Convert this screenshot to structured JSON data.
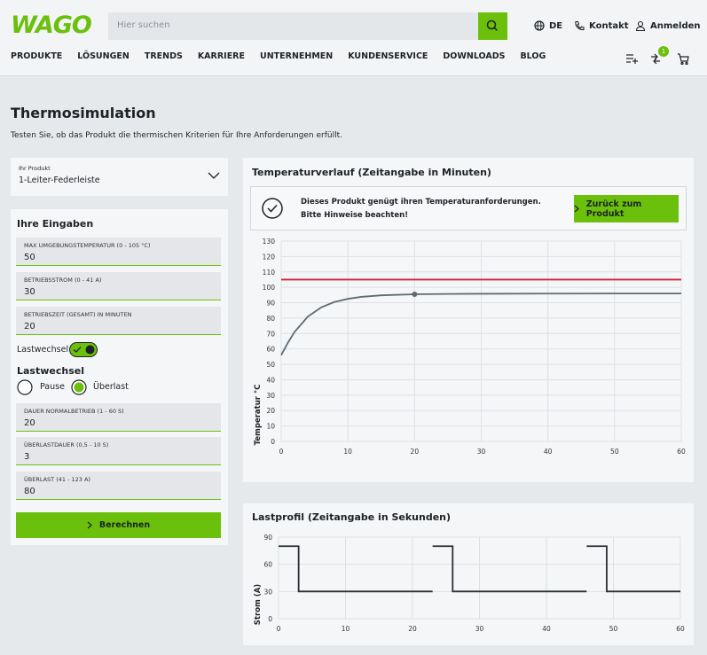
{
  "header": {
    "logo": "WAGO",
    "search_placeholder": "Hier suchen",
    "language": "DE",
    "contact": "Kontakt",
    "login": "Anmelden",
    "nav": [
      "PRODUKTE",
      "LÖSUNGEN",
      "TRENDS",
      "KARRIERE",
      "UNTERNEHMEN",
      "KUNDENSERVICE",
      "DOWNLOADS",
      "BLOG"
    ],
    "compare_badge": "1"
  },
  "page": {
    "title": "Thermosimulation",
    "subtitle": "Testen Sie, ob das Produkt die thermischen Kriterien für Ihre Anforderungen erfüllt."
  },
  "product": {
    "label": "Ihr Produkt",
    "value": "1-Leiter-Federleiste"
  },
  "inputs": {
    "title": "Ihre Eingaben",
    "fields": [
      {
        "label": "MAX UMGEBUNGSTEMPERATUR (0 - 105 °C)",
        "value": "50"
      },
      {
        "label": "BETRIEBSSTROM (0 - 41 A)",
        "value": "30"
      },
      {
        "label": "BETRIEBSZEIT (GESAMT) IN MINUTEN",
        "value": "20"
      }
    ],
    "toggle_label": "Lastwechsel",
    "mode_title": "Lastwechsel",
    "options": [
      "Pause",
      "Überlast"
    ],
    "load_fields": [
      {
        "label": "DAUER NORMALBETRIEB (1 - 60 S)",
        "value": "20"
      },
      {
        "label": "ÜBERLASTDAUER (0,5 - 10 S)",
        "value": "3"
      },
      {
        "label": "ÜBERLAST (41 - 123 A)",
        "value": "80"
      }
    ],
    "button": "Berechnen"
  },
  "result": {
    "message": "Dieses Produkt genügt ihren Temperaturanforderungen. Bitte Hinweise beachten!",
    "button": "Zurück zum Produkt"
  },
  "chart_data": [
    {
      "type": "line",
      "title": "Temperaturverlauf (Zeitangabe in Minuten)",
      "y_label": "Temperatur °C",
      "x": [
        0,
        1,
        2,
        3,
        4,
        5,
        6,
        8,
        10,
        12,
        15,
        20,
        25,
        30,
        40,
        50,
        60
      ],
      "series": [
        {
          "color": "#5f6b73",
          "values": [
            56,
            64,
            71,
            76,
            81,
            84,
            87,
            90.5,
            92.5,
            93.8,
            94.8,
            95.5,
            95.7,
            95.8,
            95.9,
            96,
            96
          ]
        },
        {
          "color": "#d6203a",
          "values": [
            105,
            105,
            105,
            105,
            105,
            105,
            105,
            105,
            105,
            105,
            105,
            105,
            105,
            105,
            105,
            105,
            105
          ]
        }
      ],
      "highlight": {
        "x": 20,
        "y": 95.5,
        "color": "#5f6b73"
      },
      "xlim": [
        0,
        60
      ],
      "xticks": [
        0,
        10,
        20,
        30,
        40,
        50,
        60
      ],
      "ylim": [
        0,
        130
      ],
      "yticks": [
        0,
        10,
        20,
        30,
        40,
        50,
        60,
        70,
        80,
        90,
        100,
        110,
        120,
        130
      ],
      "grid": true
    },
    {
      "type": "line",
      "title": "Lastprofil (Zeitangabe in Sekunden)",
      "y_label": "Strom (A)",
      "x": [
        0,
        3,
        3,
        23,
        23,
        23,
        26,
        26,
        46,
        46,
        46,
        49,
        49,
        60
      ],
      "series": [
        {
          "color": "#2b2f33",
          "values": [
            80,
            80,
            30,
            30,
            null,
            80,
            80,
            30,
            30,
            null,
            80,
            80,
            30,
            30
          ]
        }
      ],
      "xlim": [
        0,
        60
      ],
      "xticks": [
        0,
        10,
        20,
        30,
        40,
        50,
        60
      ],
      "ylim": [
        0,
        90
      ],
      "yticks": [
        0,
        30,
        60,
        90
      ],
      "grid": true
    }
  ]
}
